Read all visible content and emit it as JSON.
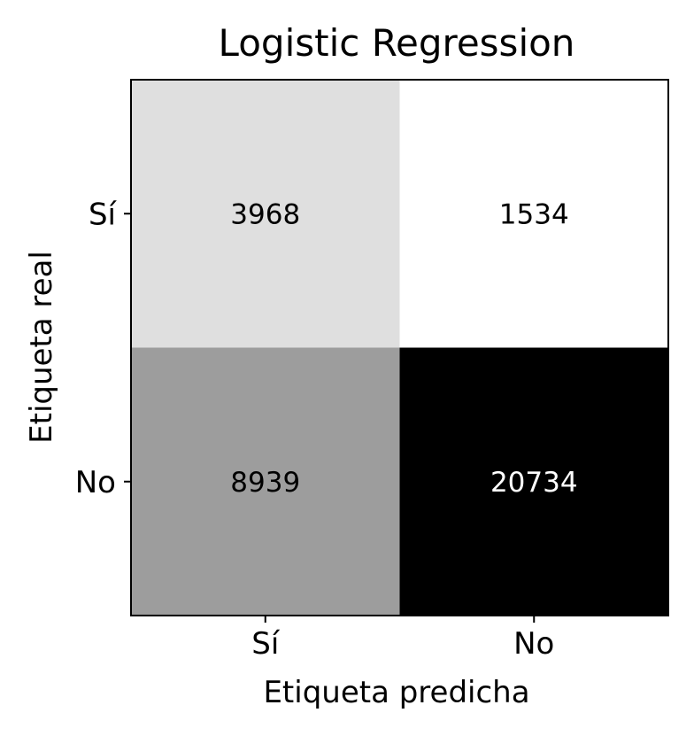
{
  "chart_data": {
    "type": "heatmap",
    "title": "Logistic Regression",
    "xlabel": "Etiqueta predicha",
    "ylabel": "Etiqueta real",
    "x_categories": [
      "Sí",
      "No"
    ],
    "y_categories": [
      "Sí",
      "No"
    ],
    "values": [
      [
        3968,
        1534
      ],
      [
        8939,
        20734
      ]
    ],
    "colormap": "Greys",
    "vmin": 1534,
    "vmax": 20734,
    "grid": false,
    "colors": {
      "low": "#ffffff",
      "high": "#000000",
      "frame": "#000000"
    }
  }
}
